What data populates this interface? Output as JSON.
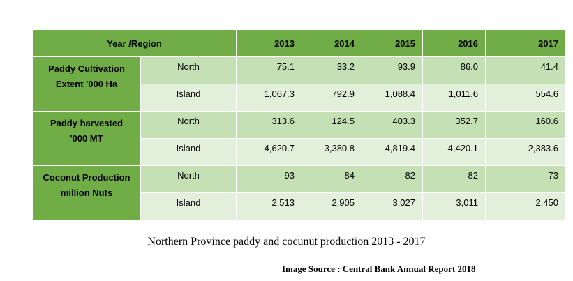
{
  "table": {
    "header": {
      "region": "Year /Region",
      "years": [
        "2013",
        "2014",
        "2015",
        "2016",
        "2017"
      ]
    },
    "groups": [
      {
        "title_line1": "Paddy Cultivation",
        "title_line2": "Extent '000 Ha",
        "rows": [
          {
            "label": "North",
            "values": [
              "75.1",
              "33.2",
              "93.9",
              "86.0",
              "41.4"
            ]
          },
          {
            "label": "Island",
            "values": [
              "1,067.3",
              "792.9",
              "1,088.4",
              "1,011.6",
              "554.6"
            ]
          }
        ]
      },
      {
        "title_line1": "Paddy harvested",
        "title_line2": "'000 MT",
        "rows": [
          {
            "label": "North",
            "values": [
              "313.6",
              "124.5",
              "403.3",
              "352.7",
              "160.6"
            ]
          },
          {
            "label": "Island",
            "values": [
              "4,620.7",
              "3,380.8",
              "4,819.4",
              "4,420.1",
              "2,383.6"
            ]
          }
        ]
      },
      {
        "title_line1": "Coconut Production",
        "title_line2": "million Nuts",
        "rows": [
          {
            "label": "North",
            "values": [
              "93",
              "84",
              "82",
              "82",
              "73"
            ]
          },
          {
            "label": "Island",
            "values": [
              "2,513",
              "2,905",
              "3,027",
              "3,011",
              "2,450"
            ]
          }
        ]
      }
    ]
  },
  "caption": "Northern Province paddy and cocunut production 2013 - 2017",
  "source": "Image Source : Central Bank Annual Report 2018",
  "colors": {
    "header_green": "#70ad47",
    "row_dark": "#c5e0b4",
    "row_light": "#e2efda"
  }
}
